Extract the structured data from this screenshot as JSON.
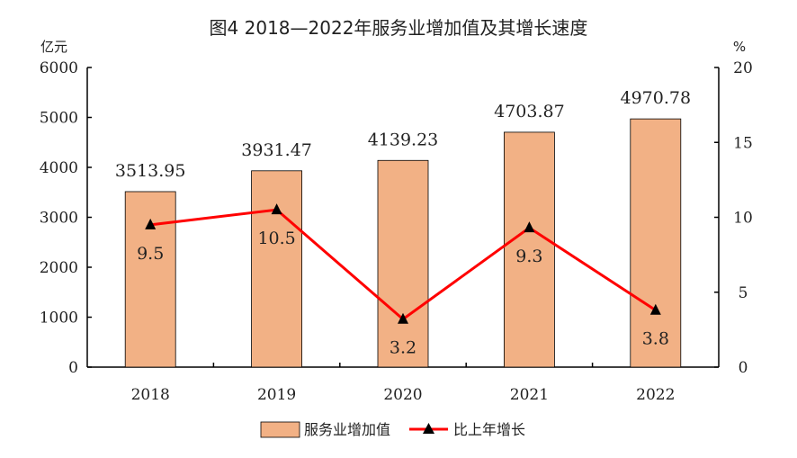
{
  "colors": {
    "bar_fill": "#f2b185",
    "bar_stroke": "#000000",
    "line": "#ff0000",
    "marker": "#000000"
  },
  "chart_data": {
    "type": "bar",
    "title": "图4  2018—2022年服务业增加值及其增长速度",
    "categories": [
      "2018",
      "2019",
      "2020",
      "2021",
      "2022"
    ],
    "y_left": {
      "unit": "亿元",
      "range": [
        0,
        6000
      ],
      "ticks": [
        "0",
        "1000",
        "2000",
        "3000",
        "4000",
        "5000",
        "6000"
      ]
    },
    "y_right": {
      "unit": "%",
      "range": [
        0,
        20
      ],
      "ticks": [
        "0",
        "5",
        "10",
        "15",
        "20"
      ]
    },
    "series": [
      {
        "name": "服务业增加值",
        "type": "bar",
        "axis": "left",
        "values": [
          3513.95,
          3931.47,
          4139.23,
          4703.87,
          4970.78
        ],
        "labels": [
          "3513.95",
          "3931.47",
          "4139.23",
          "4703.87",
          "4970.78"
        ]
      },
      {
        "name": "比上年增长",
        "type": "line",
        "axis": "right",
        "marker": "triangle",
        "values": [
          9.5,
          10.5,
          3.2,
          9.3,
          3.8
        ],
        "labels": [
          "9.5",
          "10.5",
          "3.2",
          "9.3",
          "3.8"
        ]
      }
    ],
    "legend_position": "bottom"
  }
}
